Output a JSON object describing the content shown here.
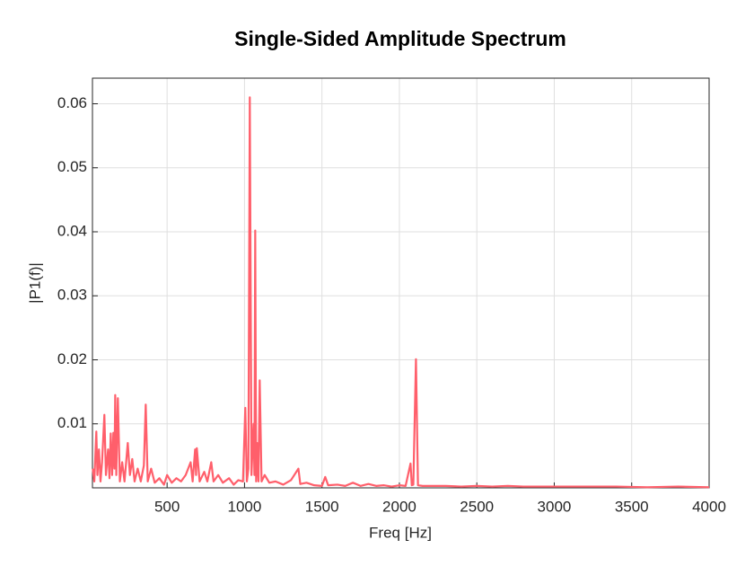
{
  "chart_data": {
    "type": "line",
    "title": "Single-Sided Amplitude Spectrum",
    "x_label": "Freq [Hz]",
    "y_label": "|P1(f)|",
    "x": [
      20,
      30,
      43,
      50,
      60,
      70,
      80,
      95,
      105,
      119,
      128,
      136,
      145,
      153,
      160,
      165,
      172,
      182,
      195,
      210,
      225,
      246,
      260,
      275,
      290,
      310,
      330,
      350,
      362,
      375,
      397,
      420,
      450,
      480,
      500,
      530,
      560,
      590,
      620,
      652,
      665,
      681,
      687,
      692,
      710,
      740,
      760,
      785,
      800,
      830,
      860,
      900,
      930,
      960,
      990,
      1005,
      1015,
      1025,
      1034,
      1045,
      1058,
      1064,
      1069,
      1075,
      1081,
      1090,
      1098,
      1110,
      1130,
      1160,
      1200,
      1250,
      1300,
      1348,
      1360,
      1400,
      1450,
      1500,
      1521,
      1540,
      1600,
      1650,
      1700,
      1750,
      1800,
      1850,
      1900,
      1950,
      2000,
      2040,
      2072,
      2080,
      2090,
      2107,
      2120,
      2150,
      2200,
      2300,
      2400,
      2500,
      2600,
      2700,
      2800,
      2900,
      3000,
      3200,
      3400,
      3600,
      3800,
      4000
    ],
    "series": [
      {
        "name": "P1",
        "color": "#ff5f6b",
        "values": [
          0.003,
          0.001,
          0.0088,
          0.002,
          0.006,
          0.001,
          0.004,
          0.0114,
          0.002,
          0.006,
          0.0015,
          0.0085,
          0.002,
          0.0086,
          0.003,
          0.0145,
          0.002,
          0.014,
          0.001,
          0.004,
          0.001,
          0.007,
          0.002,
          0.0045,
          0.001,
          0.003,
          0.001,
          0.0035,
          0.013,
          0.001,
          0.003,
          0.0008,
          0.0015,
          0.0005,
          0.002,
          0.0008,
          0.0015,
          0.001,
          0.002,
          0.004,
          0.001,
          0.006,
          0.002,
          0.0062,
          0.001,
          0.0025,
          0.001,
          0.004,
          0.001,
          0.002,
          0.0008,
          0.0015,
          0.0005,
          0.0012,
          0.001,
          0.0125,
          0.001,
          0.003,
          0.061,
          0.002,
          0.01,
          0.002,
          0.0402,
          0.001,
          0.007,
          0.001,
          0.0168,
          0.001,
          0.002,
          0.0008,
          0.001,
          0.0005,
          0.0012,
          0.003,
          0.0006,
          0.0008,
          0.0004,
          0.0003,
          0.0017,
          0.0004,
          0.0005,
          0.0003,
          0.0008,
          0.0003,
          0.0006,
          0.0003,
          0.0004,
          0.0002,
          0.0004,
          0.0003,
          0.0038,
          0.0004,
          0.0005,
          0.0201,
          0.0004,
          0.0003,
          0.0003,
          0.0003,
          0.0002,
          0.0003,
          0.0002,
          0.0003,
          0.0002,
          0.0002,
          0.0002,
          0.0002,
          0.0002,
          0.0001,
          0.0002,
          0.0001
        ]
      }
    ],
    "xlim": [
      18,
      4000
    ],
    "ylim": [
      0,
      0.064
    ],
    "xticks": [
      500,
      1000,
      1500,
      2000,
      2500,
      3000,
      3500,
      4000
    ],
    "yticks": [
      0.01,
      0.02,
      0.03,
      0.04,
      0.05,
      0.06
    ],
    "grid": true
  }
}
